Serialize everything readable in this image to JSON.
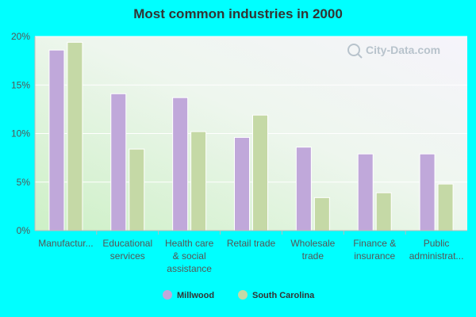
{
  "chart_data": {
    "type": "bar",
    "title": "Most common industries in 2000",
    "categories": [
      [
        "Manufactur..."
      ],
      [
        "Educational",
        "services"
      ],
      [
        "Health care",
        "& social",
        "assistance"
      ],
      [
        "Retail trade"
      ],
      [
        "Wholesale",
        "trade"
      ],
      [
        "Finance &",
        "insurance"
      ],
      [
        "Public",
        "administrat..."
      ]
    ],
    "series": [
      {
        "name": "Millwood",
        "color": "#c0a8da",
        "values": [
          18.6,
          14.1,
          13.7,
          9.6,
          8.6,
          7.9,
          7.9
        ]
      },
      {
        "name": "South Carolina",
        "color": "#c5d9a6",
        "values": [
          19.4,
          8.4,
          10.2,
          11.9,
          3.4,
          3.9,
          4.8
        ]
      }
    ],
    "yticks": [
      "0%",
      "5%",
      "10%",
      "15%",
      "20%"
    ],
    "ylim": [
      0,
      20
    ],
    "grid": true,
    "legend": "bottom-center"
  },
  "watermark": "City-Data.com"
}
